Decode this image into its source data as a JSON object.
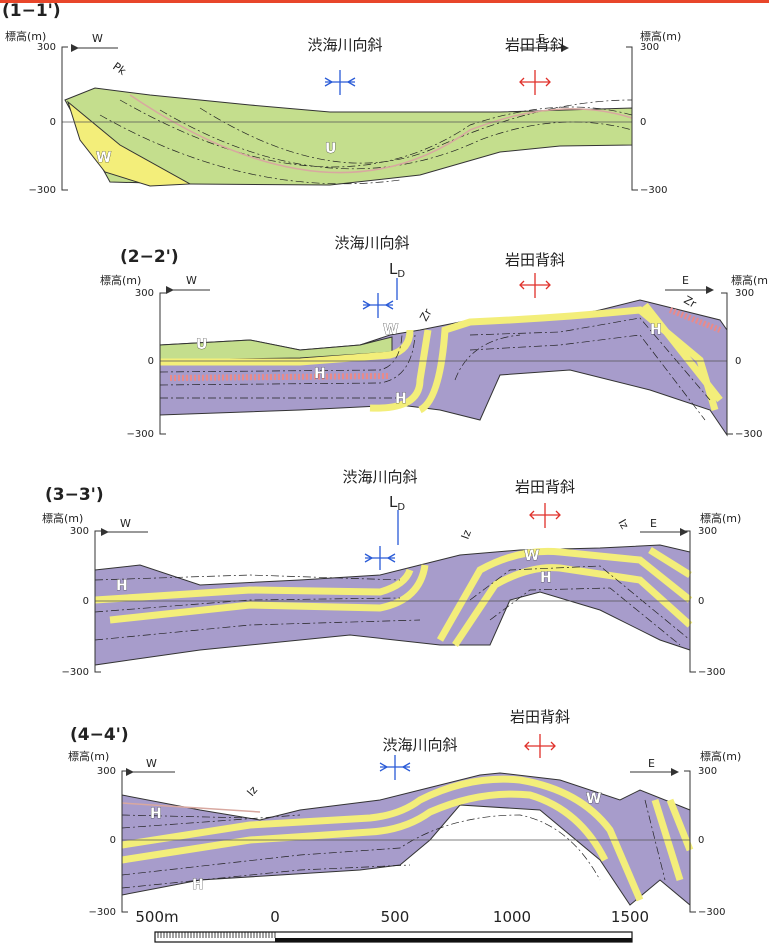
{
  "sections": [
    {
      "title": "(1−1')",
      "elevation_label_left": "標高(m)",
      "elevation_label_right": "標高(m)",
      "west": "W",
      "east": "E",
      "left_ticks": [
        "300",
        "0",
        "−300"
      ],
      "right_ticks": [
        "300",
        "0",
        "−300"
      ],
      "syncline": "渋海川向斜",
      "anticline": "岩田背斜",
      "labels": [
        "Pk",
        "W",
        "U"
      ]
    },
    {
      "title": "(2−2')",
      "elevation_label_left": "標高(m)",
      "elevation_label_right": "標高(m)",
      "west": "W",
      "east": "E",
      "left_ticks": [
        "300",
        "0",
        "−300"
      ],
      "right_ticks": [
        "300",
        "0",
        "−300"
      ],
      "syncline": "渋海川向斜",
      "fault": {
        "main": "L",
        "sub": "D"
      },
      "anticline": "岩田背斜",
      "labels": [
        "Zr",
        "U",
        "W",
        "H",
        "H",
        "H",
        "Zr"
      ]
    },
    {
      "title": "(3−3')",
      "elevation_label_left": "標高(m)",
      "elevation_label_right": "標高(m)",
      "west": "W",
      "east": "E",
      "left_ticks": [
        "300",
        "0",
        "−300"
      ],
      "right_ticks": [
        "300",
        "0",
        "−300"
      ],
      "syncline": "渋海川向斜",
      "fault": {
        "main": "L",
        "sub": "D"
      },
      "anticline": "岩田背斜",
      "labels": [
        "Iz",
        "Iz",
        "W",
        "H",
        "H"
      ]
    },
    {
      "title": "(4−4')",
      "elevation_label_left": "標高(m)",
      "elevation_label_right": "標高(m)",
      "west": "W",
      "east": "E",
      "left_ticks": [
        "300",
        "0",
        "−300"
      ],
      "right_ticks": [
        "300",
        "0",
        "−300"
      ],
      "anticline": "岩田背斜",
      "syncline": "渋海川向斜",
      "labels": [
        "Iz",
        "H",
        "H",
        "W"
      ]
    }
  ],
  "scale": {
    "labels": [
      "500m",
      "0",
      "500",
      "1000",
      "1500"
    ]
  }
}
